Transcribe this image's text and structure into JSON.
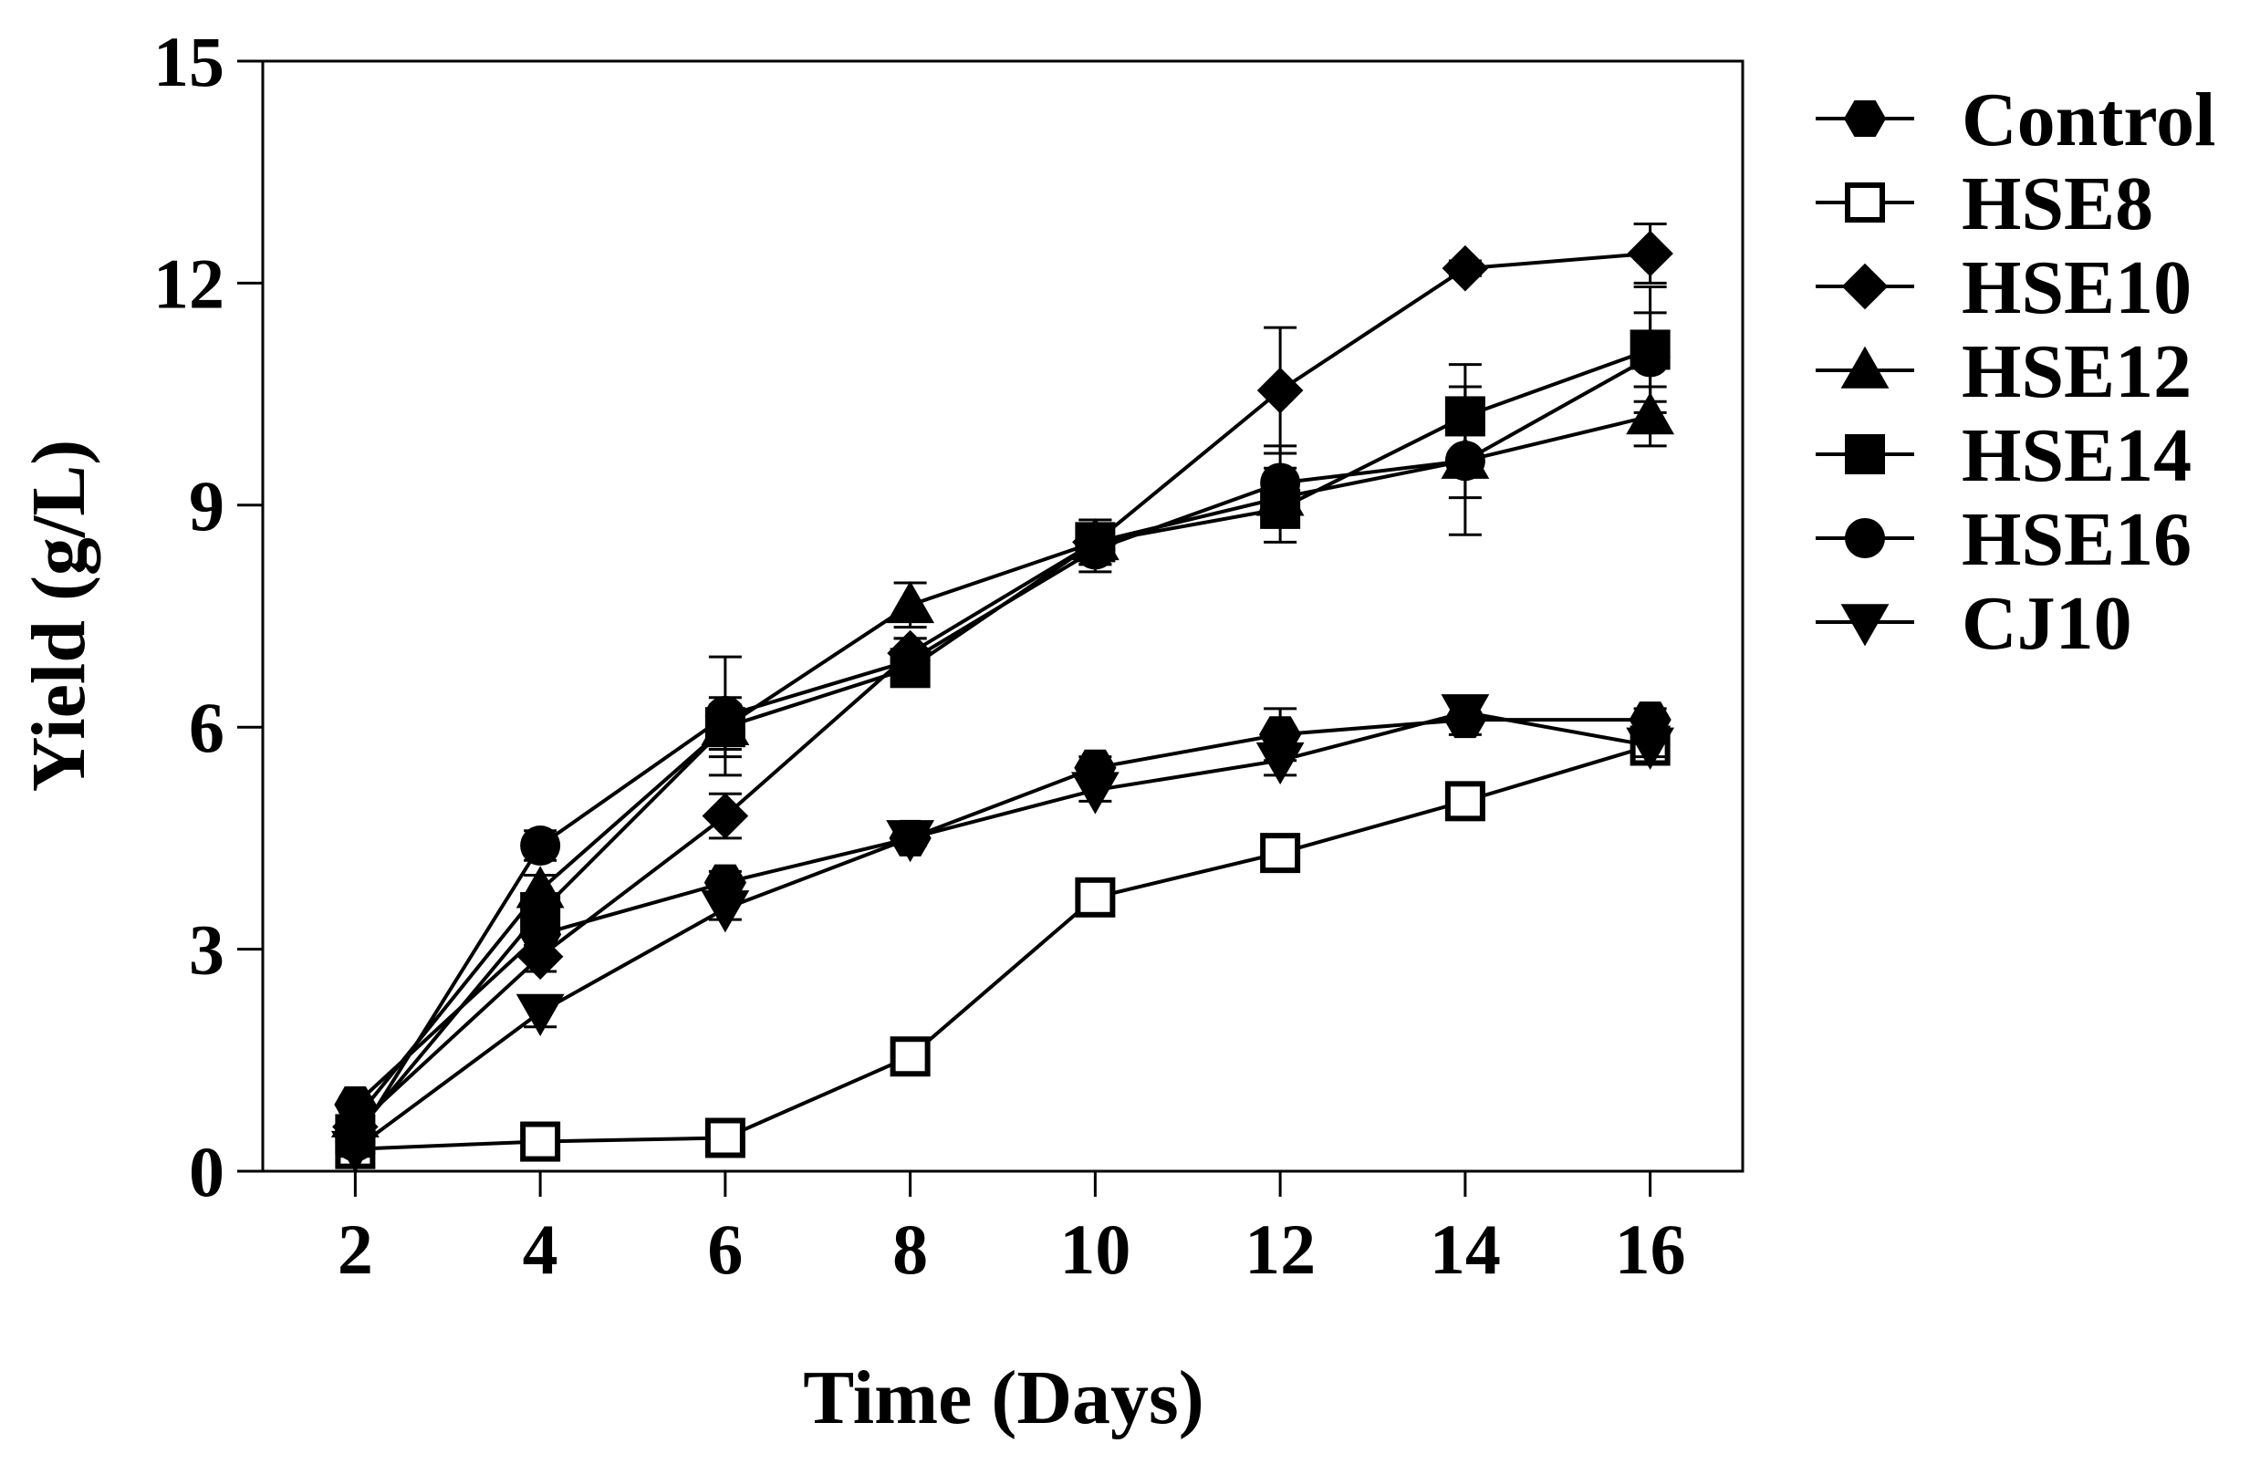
{
  "chart_data": {
    "type": "line",
    "title": "",
    "xlabel": "Time (Days)",
    "ylabel": "Yield (g/L)",
    "x": [
      2,
      4,
      6,
      8,
      10,
      12,
      14,
      16
    ],
    "xticks": [
      "2",
      "4",
      "6",
      "8",
      "10",
      "12",
      "14",
      "16"
    ],
    "yticks": [
      "0",
      "3",
      "6",
      "9",
      "12",
      "15"
    ],
    "xlim": [
      1,
      17
    ],
    "ylim": [
      0,
      15
    ],
    "legend_position": "right",
    "grid": false,
    "series": [
      {
        "name": "Control",
        "marker": "hexagon",
        "values": [
          0.9,
          3.2,
          3.9,
          4.5,
          5.45,
          5.9,
          6.1,
          6.1
        ],
        "errors": [
          0.1,
          0.15,
          0.15,
          0.1,
          0.15,
          0.35,
          0.2,
          0.15
        ]
      },
      {
        "name": "HSE8",
        "marker": "square-open",
        "values": [
          0.3,
          0.4,
          0.45,
          1.55,
          3.7,
          4.3,
          5.0,
          5.75
        ],
        "errors": [
          0.05,
          0.05,
          0.05,
          0.1,
          0.15,
          0.15,
          0.15,
          0.15
        ]
      },
      {
        "name": "HSE10",
        "marker": "diamond",
        "values": [
          0.6,
          2.9,
          4.8,
          7.0,
          8.5,
          10.55,
          12.2,
          12.4
        ],
        "errors": [
          0.1,
          0.2,
          0.3,
          0.2,
          0.2,
          0.85,
          0.1,
          0.4
        ]
      },
      {
        "name": "HSE12",
        "marker": "triangle-up",
        "values": [
          0.7,
          3.8,
          6.0,
          7.65,
          8.5,
          9.1,
          9.6,
          10.2
        ],
        "errors": [
          0.1,
          0.2,
          0.3,
          0.3,
          0.3,
          0.4,
          0.5,
          0.4
        ]
      },
      {
        "name": "HSE14",
        "marker": "square",
        "values": [
          0.5,
          3.5,
          6.0,
          6.8,
          8.5,
          8.95,
          10.2,
          11.1
        ],
        "errors": [
          0.1,
          0.2,
          0.4,
          0.2,
          0.3,
          0.45,
          0.7,
          0.85
        ]
      },
      {
        "name": "HSE16",
        "marker": "circle",
        "values": [
          0.4,
          4.4,
          6.15,
          6.9,
          8.4,
          9.3,
          9.6,
          11.0
        ],
        "errors": [
          0.1,
          0.2,
          0.8,
          0.3,
          0.3,
          0.5,
          1.0,
          0.6
        ]
      },
      {
        "name": "CJ10",
        "marker": "triangle-down",
        "values": [
          0.3,
          2.15,
          3.55,
          4.5,
          5.15,
          5.55,
          6.2,
          5.75
        ],
        "errors": [
          0.1,
          0.2,
          0.15,
          0.1,
          0.15,
          0.2,
          0.15,
          0.15
        ]
      }
    ]
  }
}
